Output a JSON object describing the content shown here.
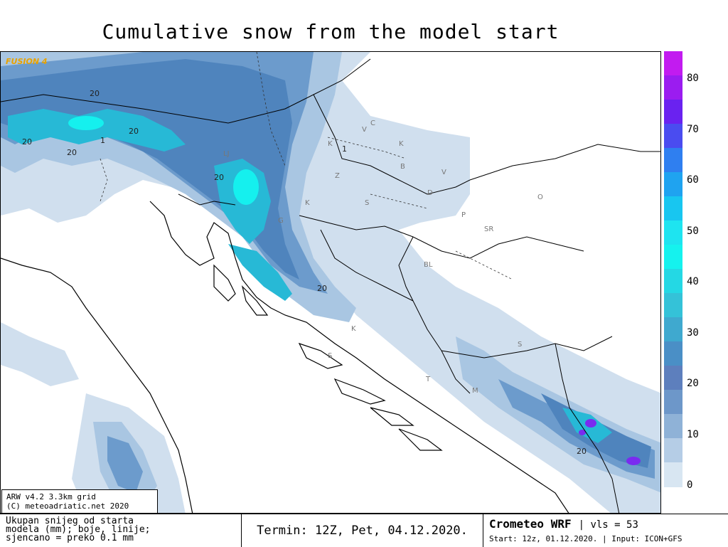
{
  "title": "Cumulative snow from the model start",
  "logo_text": "FUSION 4",
  "credit": {
    "line1": "ARW v4.2 3.3km grid",
    "line2": "(C) meteoadriatic.net 2020"
  },
  "footer": {
    "description_line1": "Ukupan snijeg od starta",
    "description_line2": "modela (mm); boje, linije;",
    "description_line3": "sjencano = preko 0.1 mm",
    "termin": "Termin: 12Z, Pet, 04.12.2020.",
    "model_name": "Crometeo WRF",
    "vls": "vls = 53",
    "start": "Start: 12z, 01.12.2020.",
    "input": "Input: ICON+GFS"
  },
  "legend": {
    "labels": [
      "80",
      "70",
      "60",
      "50",
      "40",
      "30",
      "20",
      "10",
      "0"
    ],
    "colors": [
      "#c21bf0",
      "#9b1cf0",
      "#6a22f0",
      "#4a4cf0",
      "#2f7ff0",
      "#1fa3f0",
      "#18c6f0",
      "#1ee4f0",
      "#15f2ee",
      "#24d8e4",
      "#34c2d8",
      "#3fa9cf",
      "#4a8fc6",
      "#5d7fbd",
      "#6d97c9",
      "#8fb2d7",
      "#b5cde6",
      "#d8e6f2"
    ]
  },
  "contour_labels": [
    "20",
    "20",
    "20",
    "20",
    "20",
    "20",
    "1",
    "1",
    "20"
  ],
  "country_codes": [
    "V",
    "C",
    "K",
    "K",
    "B",
    "V",
    "LJ",
    "Z",
    "S",
    "D",
    "O",
    "P",
    "SR",
    "K",
    "G",
    "BL",
    "K",
    "S",
    "S",
    "M",
    "T"
  ],
  "legend_colors": {
    "0": "#d8e6f2",
    "10": "#8fb2d7",
    "20": "#5d7fbd",
    "30": "#3fa9cf",
    "40": "#15f2ee",
    "50": "#1ee4f0",
    "60": "#2f7ff0",
    "70": "#6a22f0",
    "80": "#c21bf0"
  }
}
